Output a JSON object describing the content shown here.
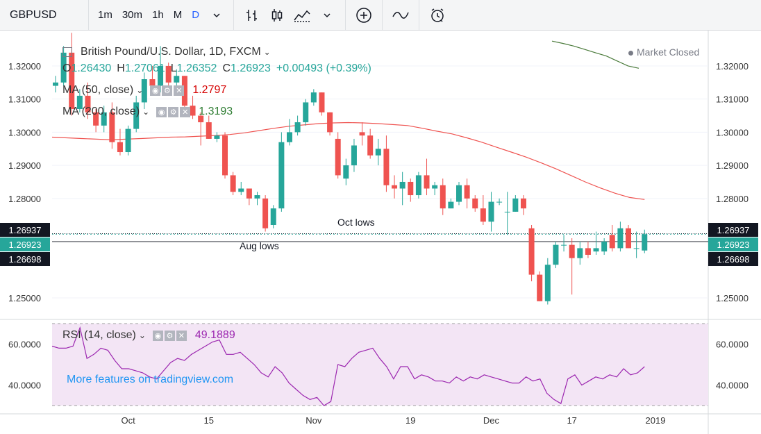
{
  "toolbar": {
    "symbol": "GBPUSD",
    "intervals": [
      "1m",
      "30m",
      "1h",
      "M",
      "D"
    ],
    "active_interval": "D",
    "icons": [
      "chevron-down-icon",
      "bar-style-icon",
      "candle-style-icon",
      "indicators-icon",
      "compare-icon",
      "chart-type-icon",
      "alert-icon"
    ]
  },
  "legend": {
    "title": "British Pound/U.S. Dollar, 1D, FXCM",
    "ohlc": {
      "o_label": "O",
      "o": "1.26430",
      "h_label": "H",
      "h": "1.27061",
      "l_label": "L",
      "l": "1.26352",
      "c_label": "C",
      "c": "1.26923",
      "chg": "+0.00493 (+0.39%)"
    },
    "ma50_label": "MA (50, close)",
    "ma50_value": "1.2797",
    "ma200_label": "MA (200, close)",
    "ma200_value": "1.3193",
    "rsi_label": "RSI (14, close)",
    "rsi_value": "49.1889"
  },
  "status": {
    "market": "Market Closed"
  },
  "annotations": {
    "oct_lows": "Oct lows",
    "aug_lows": "Aug lows"
  },
  "price_tags": {
    "oct_level": "1.26937",
    "last": "1.26923",
    "aug_level": "1.26698"
  },
  "colors": {
    "up": "#26a69a",
    "down": "#ef5350",
    "ma50": "#ef5350",
    "ma200": "#4a7a3a",
    "rsi": "#9c27b0",
    "rsi_bg": "#f3e5f5",
    "dark_tag": "#131722"
  },
  "watermark": "More features on tradingview.com",
  "chart_data": {
    "type": "candlestick",
    "price_axis": {
      "ticks": [
        "1.32000",
        "1.31000",
        "1.30000",
        "1.29000",
        "1.28000",
        "1.25000"
      ],
      "range": [
        1.2435,
        1.329
      ]
    },
    "time_axis": {
      "ticks": [
        "Oct",
        "15",
        "Nov",
        "19",
        "Dec",
        "17",
        "2019"
      ]
    },
    "rsi_axis": {
      "ticks": [
        "60.0000",
        "40.0000"
      ],
      "range": [
        27,
        71
      ],
      "bands": [
        70,
        30
      ]
    },
    "levels": {
      "oct_lows": 1.26937,
      "aug_lows": 1.26698
    },
    "candles": [
      [
        1.314,
        1.317,
        1.312,
        1.315
      ],
      [
        1.315,
        1.326,
        1.314,
        1.324
      ],
      [
        1.324,
        1.33,
        1.305,
        1.307
      ],
      [
        1.307,
        1.313,
        1.306,
        1.311
      ],
      [
        1.311,
        1.315,
        1.304,
        1.306
      ],
      [
        1.306,
        1.307,
        1.3,
        1.302
      ],
      [
        1.302,
        1.308,
        1.3,
        1.306
      ],
      [
        1.306,
        1.309,
        1.295,
        1.297
      ],
      [
        1.297,
        1.301,
        1.293,
        1.294
      ],
      [
        1.294,
        1.302,
        1.293,
        1.301
      ],
      [
        1.301,
        1.311,
        1.3,
        1.309
      ],
      [
        1.309,
        1.318,
        1.307,
        1.316
      ],
      [
        1.316,
        1.32,
        1.312,
        1.314
      ],
      [
        1.314,
        1.326,
        1.312,
        1.32
      ],
      [
        1.32,
        1.321,
        1.312,
        1.315
      ],
      [
        1.315,
        1.319,
        1.312,
        1.317
      ],
      [
        1.317,
        1.317,
        1.306,
        1.308
      ],
      [
        1.308,
        1.311,
        1.304,
        1.305
      ],
      [
        1.305,
        1.306,
        1.296,
        1.303
      ],
      [
        1.303,
        1.305,
        1.298,
        1.298
      ],
      [
        1.298,
        1.3,
        1.297,
        1.299
      ],
      [
        1.299,
        1.3,
        1.286,
        1.287
      ],
      [
        1.287,
        1.288,
        1.281,
        1.282
      ],
      [
        1.282,
        1.285,
        1.281,
        1.283
      ],
      [
        1.283,
        1.283,
        1.278,
        1.28
      ],
      [
        1.28,
        1.282,
        1.278,
        1.281
      ],
      [
        1.28,
        1.281,
        1.27,
        1.271
      ],
      [
        1.272,
        1.278,
        1.271,
        1.277
      ],
      [
        1.277,
        1.3,
        1.276,
        1.297
      ],
      [
        1.297,
        1.304,
        1.296,
        1.3
      ],
      [
        1.3,
        1.305,
        1.299,
        1.303
      ],
      [
        1.303,
        1.31,
        1.302,
        1.309
      ],
      [
        1.309,
        1.313,
        1.308,
        1.312
      ],
      [
        1.312,
        1.312,
        1.305,
        1.306
      ],
      [
        1.306,
        1.306,
        1.299,
        1.3
      ],
      [
        1.298,
        1.3,
        1.286,
        1.287
      ],
      [
        1.286,
        1.292,
        1.284,
        1.29
      ],
      [
        1.29,
        1.298,
        1.288,
        1.296
      ],
      [
        1.3,
        1.303,
        1.296,
        1.299
      ],
      [
        1.299,
        1.301,
        1.292,
        1.293
      ],
      [
        1.293,
        1.298,
        1.29,
        1.295
      ],
      [
        1.295,
        1.299,
        1.282,
        1.284
      ],
      [
        1.284,
        1.287,
        1.28,
        1.283
      ],
      [
        1.283,
        1.288,
        1.278,
        1.285
      ],
      [
        1.285,
        1.286,
        1.279,
        1.281
      ],
      [
        1.281,
        1.288,
        1.28,
        1.287
      ],
      [
        1.287,
        1.292,
        1.281,
        1.283
      ],
      [
        1.283,
        1.285,
        1.281,
        1.284
      ],
      [
        1.284,
        1.286,
        1.275,
        1.277
      ],
      [
        1.277,
        1.28,
        1.277,
        1.279
      ],
      [
        1.279,
        1.285,
        1.278,
        1.284
      ],
      [
        1.284,
        1.286,
        1.277,
        1.28
      ],
      [
        1.28,
        1.281,
        1.276,
        1.277
      ],
      [
        1.277,
        1.281,
        1.272,
        1.273
      ],
      [
        1.273,
        1.282,
        1.27,
        1.279
      ],
      [
        1.279,
        1.28,
        1.278,
        1.279
      ],
      [
        1.276,
        1.282,
        1.269,
        1.276
      ],
      [
        1.276,
        1.281,
        1.276,
        1.28
      ],
      [
        1.28,
        1.281,
        1.275,
        1.277
      ],
      [
        1.271,
        1.272,
        1.255,
        1.257
      ],
      [
        1.257,
        1.258,
        1.249,
        1.249
      ],
      [
        1.249,
        1.262,
        1.248,
        1.26
      ],
      [
        1.26,
        1.267,
        1.259,
        1.266
      ],
      [
        1.266,
        1.269,
        1.264,
        1.266
      ],
      [
        1.266,
        1.268,
        1.251,
        1.262
      ],
      [
        1.262,
        1.267,
        1.26,
        1.265
      ],
      [
        1.265,
        1.267,
        1.262,
        1.263
      ],
      [
        1.264,
        1.27,
        1.263,
        1.265
      ],
      [
        1.264,
        1.268,
        1.263,
        1.267
      ],
      [
        1.269,
        1.272,
        1.264,
        1.265
      ],
      [
        1.265,
        1.273,
        1.264,
        1.271
      ],
      [
        1.271,
        1.272,
        1.265,
        1.265
      ],
      [
        1.265,
        1.27,
        1.262,
        1.265
      ],
      [
        1.2643,
        1.2706,
        1.2635,
        1.2692
      ]
    ],
    "ma50": [
      1.2985,
      1.2983,
      1.2981,
      1.2979,
      1.2977,
      1.2979,
      1.2981,
      1.2983,
      1.2985,
      1.2986,
      1.2988,
      1.299,
      1.2993,
      1.2998,
      1.3005,
      1.3012,
      1.3018,
      1.3022,
      1.3026,
      1.3028,
      1.3029,
      1.3028,
      1.3026,
      1.3023,
      1.302,
      1.3012,
      1.3003,
      1.2995,
      1.2983,
      1.297,
      1.2955,
      1.294,
      1.2925,
      1.2908,
      1.289,
      1.287,
      1.285,
      1.2832,
      1.2816,
      1.2803,
      1.2797
    ],
    "ma200": [
      1.3275,
      1.3268,
      1.326,
      1.325,
      1.324,
      1.323,
      1.3215,
      1.32,
      1.3193
    ],
    "rsi": [
      59,
      58,
      58,
      59,
      68,
      53,
      55,
      58,
      57,
      52,
      48,
      48,
      47,
      46,
      44,
      43,
      47,
      51,
      53,
      52,
      55,
      57,
      59,
      61,
      62,
      55,
      55,
      56,
      53,
      50,
      46,
      44,
      49,
      46,
      41,
      38,
      35,
      33,
      34,
      30,
      32,
      50,
      49,
      53,
      56,
      57,
      58,
      53,
      49,
      43,
      49,
      49,
      43,
      45,
      44,
      42,
      42,
      41,
      44,
      42,
      44,
      43,
      45,
      44,
      43,
      42,
      41,
      41,
      44,
      42,
      43,
      36,
      33,
      31,
      43,
      45,
      40,
      42,
      44,
      43,
      45,
      44,
      48,
      45,
      46,
      49
    ]
  }
}
